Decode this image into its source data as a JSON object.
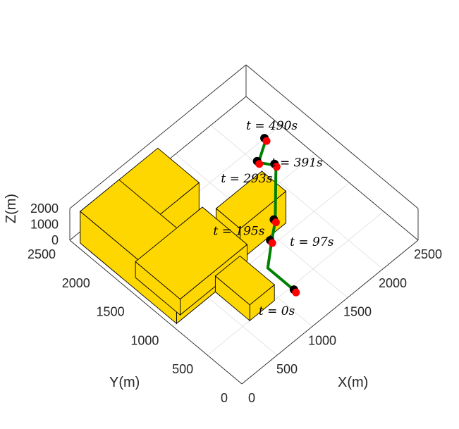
{
  "chart_data": {
    "type": "3d-scene",
    "xlabel": "X(m)",
    "ylabel": "Y(m)",
    "zlabel": "Z(m)",
    "xlim": [
      0,
      2500
    ],
    "ylim": [
      0,
      2500
    ],
    "zlim": [
      0,
      2000
    ],
    "x_ticks": [
      0,
      500,
      1000,
      1500,
      2000,
      2500
    ],
    "y_ticks": [
      0,
      500,
      1000,
      1500,
      2000,
      2500
    ],
    "z_ticks": [
      0,
      1000,
      2000
    ],
    "x_tick_labels": [
      "0",
      "500",
      "1000",
      "1500",
      "2000",
      "2500"
    ],
    "y_tick_labels": [
      "0",
      "500",
      "1000",
      "1500",
      "2000",
      "2500"
    ],
    "z_tick_labels": [
      "0",
      "1000",
      "2000"
    ],
    "grid": true,
    "colors": {
      "building": "#FFD700",
      "path": "#008000",
      "marker_fill": "#FF0000",
      "marker_edge": "#000000"
    },
    "buildings": [
      {
        "x": [
          1050,
          1700
        ],
        "y": [
          1100,
          1450
        ],
        "z": [
          0,
          2000
        ]
      },
      {
        "x": [
          600,
          950
        ],
        "y": [
          500,
          1000
        ],
        "z": [
          0,
          1000
        ]
      },
      {
        "x": [
          50,
          1150
        ],
        "y": [
          1800,
          2400
        ],
        "z": [
          0,
          2000
        ]
      },
      {
        "x": [
          50,
          600
        ],
        "y": [
          1000,
          2400
        ],
        "z": [
          0,
          2000
        ]
      },
      {
        "x": [
          150,
          1100
        ],
        "y": [
          1050,
          1700
        ],
        "z": [
          0,
          1000
        ]
      }
    ],
    "trajectory": {
      "x": [
        1100,
        1100,
        1300,
        1450,
        1600,
        1850,
        1750,
        2000
      ],
      "y": [
        350,
        750,
        900,
        1000,
        1150,
        1400,
        1550,
        1700
      ],
      "z": [
        600,
        600,
        1000,
        1400,
        1800,
        2000,
        2000,
        2000
      ]
    },
    "markers": [
      {
        "t": 0,
        "label": "t = 0s",
        "x": 1100,
        "y": 350,
        "z": 600
      },
      {
        "t": 97,
        "label": "t = 97s",
        "x": 1300,
        "y": 900,
        "z": 1000
      },
      {
        "t": 195,
        "label": "t = 195s",
        "x": 1450,
        "y": 1000,
        "z": 1400
      },
      {
        "t": 293,
        "label": "t = 293s",
        "x": 1850,
        "y": 1400,
        "z": 2000
      },
      {
        "t": 391,
        "label": "t = 391s",
        "x": 1750,
        "y": 1550,
        "z": 2000
      },
      {
        "t": 490,
        "label": "t = 490s",
        "x": 2000,
        "y": 1700,
        "z": 2000
      }
    ]
  }
}
